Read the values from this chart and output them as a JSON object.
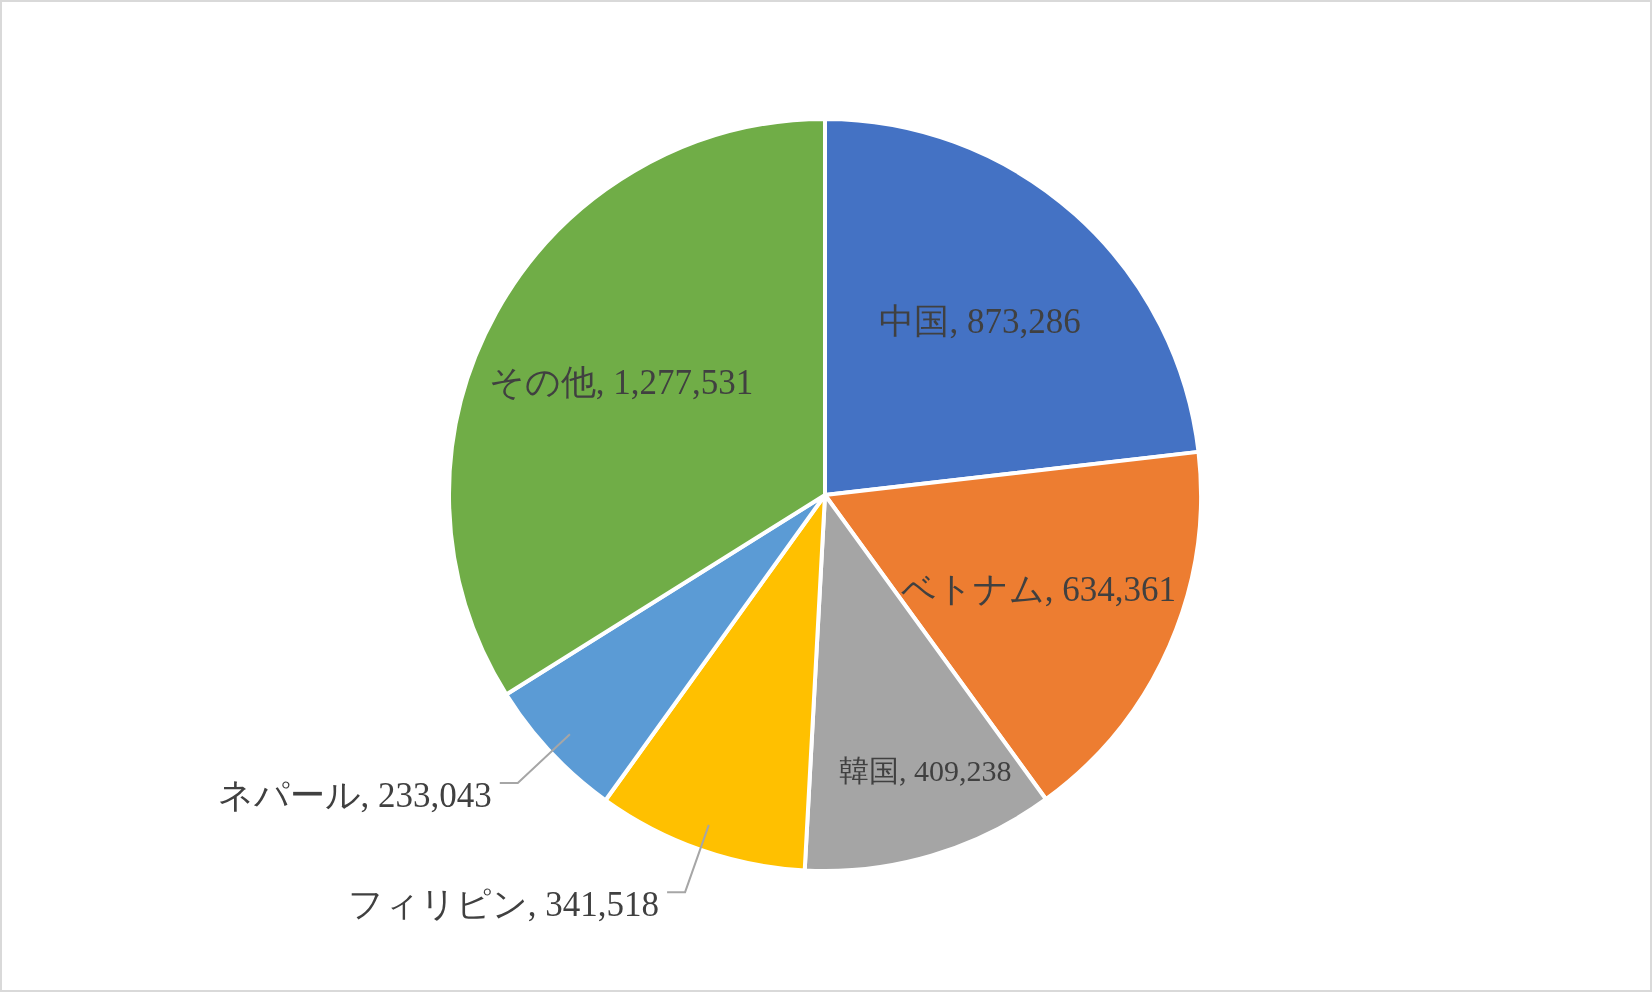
{
  "chart_data": {
    "type": "pie",
    "categories": [
      "中国",
      "ベトナム",
      "韓国",
      "フィリピン",
      "ネパール",
      "その他"
    ],
    "data_labels": true,
    "values": [
      873286,
      634361,
      409238,
      341518,
      233043,
      1277531
    ],
    "colors": [
      "#4472c4",
      "#ed7d31",
      "#a5a5a5",
      "#ffc000",
      "#5b9bd5",
      "#70ad47"
    ],
    "value_labels": [
      "873,286",
      "634,361",
      "409,238",
      "341,518",
      "233,043",
      "1,277,531"
    ]
  }
}
